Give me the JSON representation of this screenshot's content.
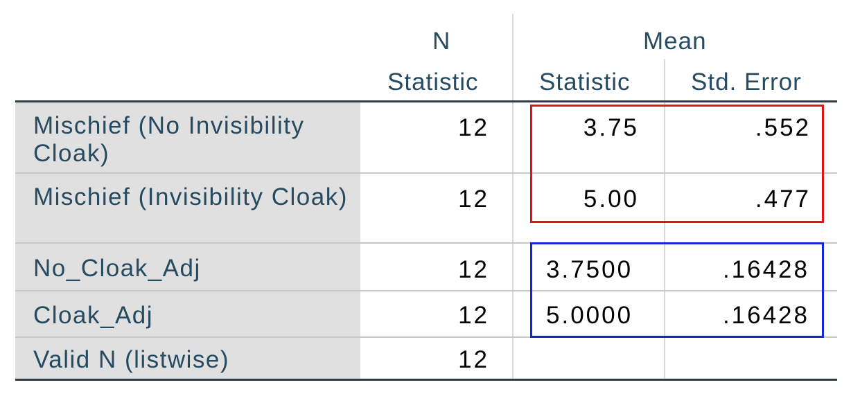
{
  "header": {
    "n_group": "N",
    "mean_group": "Mean",
    "n_statistic": "Statistic",
    "mean_statistic": "Statistic",
    "mean_std_error": "Std. Error"
  },
  "rows": [
    {
      "label": "Mischief (No Invisibility Cloak)",
      "n": "12",
      "mean": "3.75",
      "std_error": ".552"
    },
    {
      "label": "Mischief (Invisibility Cloak)",
      "n": "12",
      "mean": "5.00",
      "std_error": ".477"
    },
    {
      "label": "No_Cloak_Adj",
      "n": "12",
      "mean": "3.7500",
      "std_error": ".16428"
    },
    {
      "label": "Cloak_Adj",
      "n": "12",
      "mean": "5.0000",
      "std_error": ".16428"
    },
    {
      "label": "Valid N (listwise)",
      "n": "12",
      "mean": "",
      "std_error": ""
    }
  ],
  "highlights": {
    "red_color": "#e0151b",
    "blue_color": "#1426d6"
  }
}
